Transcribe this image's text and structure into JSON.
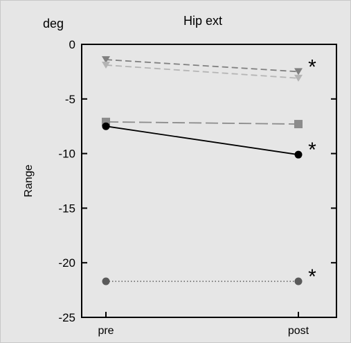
{
  "chart_data": {
    "type": "line",
    "title": "Hip ext",
    "unit_label": "deg",
    "ylabel": "Range",
    "xlabel": "",
    "categories": [
      "pre",
      "post"
    ],
    "ylim": [
      -25,
      0
    ],
    "yticks": [
      0,
      -5,
      -10,
      -15,
      -20,
      -25
    ],
    "grid": false,
    "series": [
      {
        "values": [
          -1.4,
          -2.5
        ],
        "marker": "triangle-down",
        "line": "dashed",
        "color": "#808080",
        "significance": "*"
      },
      {
        "values": [
          -1.9,
          -3.1
        ],
        "marker": "triangle-down",
        "line": "dashed",
        "color": "#b4b4b4"
      },
      {
        "values": [
          -7.1,
          -7.3
        ],
        "marker": "square",
        "line": "long-dash",
        "color": "#8c8c8c"
      },
      {
        "values": [
          -7.5,
          -10.1
        ],
        "marker": "circle",
        "line": "solid",
        "color": "#000000",
        "significance": "*"
      },
      {
        "values": [
          -21.7,
          -21.7
        ],
        "marker": "circle",
        "line": "dotted",
        "color": "#5a5a5a",
        "significance": "*"
      }
    ]
  }
}
